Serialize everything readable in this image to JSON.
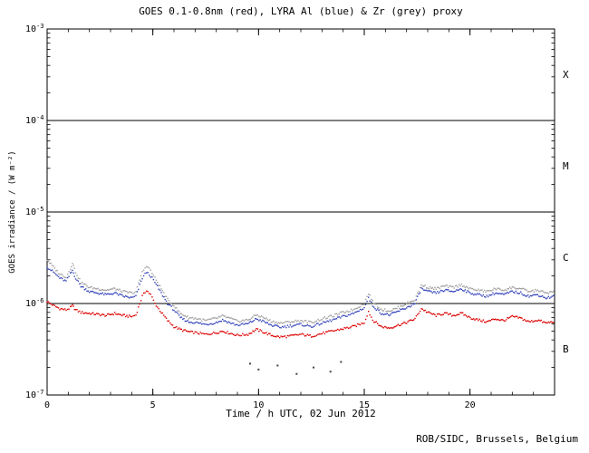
{
  "chart_data": {
    "type": "line",
    "title": "GOES 0.1-0.8nm (red), LYRA Al (blue) & Zr (grey) proxy",
    "xlabel": "Time / h UTC, 02 Jun 2012",
    "ylabel": "GOES irradiance / (W m⁻²)",
    "credit": "ROB/SIDC, Brussels, Belgium",
    "xlim": [
      0,
      24
    ],
    "ylim": [
      1e-07,
      0.001
    ],
    "xticks": [
      0,
      5,
      10,
      15,
      20
    ],
    "xtick_minor_step": 1,
    "ytick_exponents": [
      -3,
      -4,
      -5,
      -6,
      -7
    ],
    "hlines": [
      0.0001,
      1e-05,
      1e-06
    ],
    "grid": "off",
    "legend": "in title",
    "class_labels": [
      {
        "label": "X",
        "between_exponents": [
          -4,
          -3
        ]
      },
      {
        "label": "M",
        "between_exponents": [
          -5,
          -4
        ]
      },
      {
        "label": "C",
        "between_exponents": [
          -6,
          -5
        ]
      },
      {
        "label": "B",
        "between_exponents": [
          -7,
          -6
        ]
      }
    ],
    "series": [
      {
        "name": "GOES 0.1-0.8nm",
        "color": "#dd0000",
        "points": [
          [
            0,
            1.05e-06
          ],
          [
            0.3,
            9.5e-07
          ],
          [
            0.6,
            8.8e-07
          ],
          [
            0.9,
            8.5e-07
          ],
          [
            1.1,
            9e-07
          ],
          [
            1.2,
            9.5e-07
          ],
          [
            1.35,
            8.5e-07
          ],
          [
            1.6,
            8e-07
          ],
          [
            2,
            7.8e-07
          ],
          [
            2.4,
            7.6e-07
          ],
          [
            2.8,
            7.4e-07
          ],
          [
            3.2,
            7.8e-07
          ],
          [
            3.6,
            7.4e-07
          ],
          [
            4,
            7.2e-07
          ],
          [
            4.2,
            7.5e-07
          ],
          [
            4.5,
            1.2e-06
          ],
          [
            4.7,
            1.4e-06
          ],
          [
            4.9,
            1.25e-06
          ],
          [
            5.1,
            1e-06
          ],
          [
            5.4,
            8e-07
          ],
          [
            5.7,
            6.5e-07
          ],
          [
            6,
            5.6e-07
          ],
          [
            6.3,
            5.2e-07
          ],
          [
            6.7,
            4.9e-07
          ],
          [
            7,
            4.8e-07
          ],
          [
            7.5,
            4.6e-07
          ],
          [
            8,
            4.8e-07
          ],
          [
            8.3,
            5e-07
          ],
          [
            8.7,
            4.7e-07
          ],
          [
            9,
            4.5e-07
          ],
          [
            9.5,
            4.6e-07
          ],
          [
            9.9,
            5.2e-07
          ],
          [
            10.2,
            4.9e-07
          ],
          [
            10.6,
            4.5e-07
          ],
          [
            11,
            4.3e-07
          ],
          [
            11.5,
            4.4e-07
          ],
          [
            12,
            4.6e-07
          ],
          [
            12.5,
            4.4e-07
          ],
          [
            13,
            4.7e-07
          ],
          [
            13.5,
            5e-07
          ],
          [
            14,
            5.3e-07
          ],
          [
            14.5,
            5.6e-07
          ],
          [
            15,
            6.2e-07
          ],
          [
            15.2,
            8.2e-07
          ],
          [
            15.4,
            6.6e-07
          ],
          [
            15.8,
            5.6e-07
          ],
          [
            16.2,
            5.4e-07
          ],
          [
            16.6,
            5.8e-07
          ],
          [
            17,
            6.2e-07
          ],
          [
            17.4,
            6.8e-07
          ],
          [
            17.7,
            8.8e-07
          ],
          [
            18,
            8e-07
          ],
          [
            18.4,
            7.4e-07
          ],
          [
            18.8,
            7.8e-07
          ],
          [
            19.2,
            7.4e-07
          ],
          [
            19.6,
            7.8e-07
          ],
          [
            20,
            7e-07
          ],
          [
            20.4,
            6.6e-07
          ],
          [
            20.8,
            6.3e-07
          ],
          [
            21.2,
            6.8e-07
          ],
          [
            21.6,
            6.5e-07
          ],
          [
            22,
            7.2e-07
          ],
          [
            22.4,
            6.9e-07
          ],
          [
            22.8,
            6.3e-07
          ],
          [
            23.2,
            6.6e-07
          ],
          [
            23.6,
            6.1e-07
          ],
          [
            24,
            6.4e-07
          ]
        ]
      },
      {
        "name": "LYRA Al proxy",
        "color": "#3344bb",
        "points": [
          [
            0,
            2.5e-06
          ],
          [
            0.3,
            2.2e-06
          ],
          [
            0.6,
            1.9e-06
          ],
          [
            0.9,
            1.75e-06
          ],
          [
            1.1,
            2.1e-06
          ],
          [
            1.2,
            2.3e-06
          ],
          [
            1.35,
            1.9e-06
          ],
          [
            1.6,
            1.55e-06
          ],
          [
            2,
            1.35e-06
          ],
          [
            2.4,
            1.3e-06
          ],
          [
            2.8,
            1.25e-06
          ],
          [
            3.2,
            1.3e-06
          ],
          [
            3.6,
            1.2e-06
          ],
          [
            4,
            1.15e-06
          ],
          [
            4.2,
            1.2e-06
          ],
          [
            4.5,
            1.9e-06
          ],
          [
            4.7,
            2.2e-06
          ],
          [
            4.9,
            2e-06
          ],
          [
            5.1,
            1.7e-06
          ],
          [
            5.4,
            1.3e-06
          ],
          [
            5.7,
            1e-06
          ],
          [
            6,
            8.5e-07
          ],
          [
            6.3,
            7e-07
          ],
          [
            6.7,
            6.3e-07
          ],
          [
            7,
            6.2e-07
          ],
          [
            7.5,
            5.9e-07
          ],
          [
            8,
            6.2e-07
          ],
          [
            8.3,
            6.6e-07
          ],
          [
            8.7,
            6.1e-07
          ],
          [
            9,
            5.8e-07
          ],
          [
            9.5,
            6e-07
          ],
          [
            9.9,
            6.8e-07
          ],
          [
            10.2,
            6.4e-07
          ],
          [
            10.6,
            5.8e-07
          ],
          [
            11,
            5.5e-07
          ],
          [
            11.5,
            5.7e-07
          ],
          [
            12,
            5.9e-07
          ],
          [
            12.5,
            5.6e-07
          ],
          [
            13,
            6.1e-07
          ],
          [
            13.5,
            6.6e-07
          ],
          [
            14,
            7.2e-07
          ],
          [
            14.5,
            7.8e-07
          ],
          [
            15,
            9e-07
          ],
          [
            15.2,
            1.15e-06
          ],
          [
            15.4,
            9.5e-07
          ],
          [
            15.8,
            7.8e-07
          ],
          [
            16.2,
            7.5e-07
          ],
          [
            16.6,
            8.2e-07
          ],
          [
            17,
            9e-07
          ],
          [
            17.4,
            1e-06
          ],
          [
            17.7,
            1.45e-06
          ],
          [
            18,
            1.35e-06
          ],
          [
            18.4,
            1.3e-06
          ],
          [
            18.8,
            1.4e-06
          ],
          [
            19.2,
            1.35e-06
          ],
          [
            19.6,
            1.45e-06
          ],
          [
            20,
            1.3e-06
          ],
          [
            20.4,
            1.25e-06
          ],
          [
            20.8,
            1.2e-06
          ],
          [
            21.2,
            1.3e-06
          ],
          [
            21.6,
            1.25e-06
          ],
          [
            22,
            1.35e-06
          ],
          [
            22.4,
            1.3e-06
          ],
          [
            22.8,
            1.2e-06
          ],
          [
            23.2,
            1.25e-06
          ],
          [
            23.6,
            1.15e-06
          ],
          [
            24,
            1.2e-06
          ]
        ]
      },
      {
        "name": "LYRA Zr proxy",
        "color": "#a0a0a0",
        "points": [
          [
            0,
            3e-06
          ],
          [
            0.3,
            2.5e-06
          ],
          [
            0.6,
            2.1e-06
          ],
          [
            0.9,
            1.95e-06
          ],
          [
            1.1,
            2.4e-06
          ],
          [
            1.2,
            2.8e-06
          ],
          [
            1.35,
            2.2e-06
          ],
          [
            1.6,
            1.7e-06
          ],
          [
            2,
            1.5e-06
          ],
          [
            2.4,
            1.45e-06
          ],
          [
            2.8,
            1.4e-06
          ],
          [
            3.2,
            1.45e-06
          ],
          [
            3.6,
            1.35e-06
          ],
          [
            4,
            1.3e-06
          ],
          [
            4.2,
            1.35e-06
          ],
          [
            4.5,
            2.2e-06
          ],
          [
            4.7,
            2.6e-06
          ],
          [
            4.9,
            2.3e-06
          ],
          [
            5.1,
            1.9e-06
          ],
          [
            5.4,
            1.45e-06
          ],
          [
            5.7,
            1.1e-06
          ],
          [
            6,
            9.5e-07
          ],
          [
            6.3,
            7.8e-07
          ],
          [
            6.7,
            7e-07
          ],
          [
            7,
            6.9e-07
          ],
          [
            7.5,
            6.5e-07
          ],
          [
            8,
            6.9e-07
          ],
          [
            8.3,
            7.3e-07
          ],
          [
            8.7,
            6.8e-07
          ],
          [
            9,
            6.4e-07
          ],
          [
            9.5,
            6.6e-07
          ],
          [
            9.9,
            7.5e-07
          ],
          [
            10.2,
            7.1e-07
          ],
          [
            10.6,
            6.4e-07
          ],
          [
            11,
            6.1e-07
          ],
          [
            11.5,
            6.3e-07
          ],
          [
            12,
            6.5e-07
          ],
          [
            12.5,
            6.2e-07
          ],
          [
            13,
            6.8e-07
          ],
          [
            13.5,
            7.3e-07
          ],
          [
            14,
            8e-07
          ],
          [
            14.5,
            8.6e-07
          ],
          [
            15,
            1e-06
          ],
          [
            15.2,
            1.3e-06
          ],
          [
            15.4,
            1.05e-06
          ],
          [
            15.8,
            8.6e-07
          ],
          [
            16.2,
            8.3e-07
          ],
          [
            16.6,
            9e-07
          ],
          [
            17,
            1e-06
          ],
          [
            17.4,
            1.1e-06
          ],
          [
            17.7,
            1.6e-06
          ],
          [
            18,
            1.5e-06
          ],
          [
            18.4,
            1.45e-06
          ],
          [
            18.8,
            1.55e-06
          ],
          [
            19.2,
            1.5e-06
          ],
          [
            19.6,
            1.6e-06
          ],
          [
            20,
            1.45e-06
          ],
          [
            20.4,
            1.4e-06
          ],
          [
            20.8,
            1.35e-06
          ],
          [
            21.2,
            1.45e-06
          ],
          [
            21.6,
            1.4e-06
          ],
          [
            22,
            1.5e-06
          ],
          [
            22.4,
            1.45e-06
          ],
          [
            22.8,
            1.35e-06
          ],
          [
            23.2,
            1.4e-06
          ],
          [
            23.6,
            1.3e-06
          ],
          [
            24,
            1.35e-06
          ]
        ]
      }
    ],
    "extra_points": {
      "name": "isolated low-flux points",
      "color": "#444444",
      "points": [
        [
          9.6,
          2.2e-07
        ],
        [
          10.0,
          1.9e-07
        ],
        [
          10.9,
          2.1e-07
        ],
        [
          11.8,
          1.7e-07
        ],
        [
          12.6,
          2e-07
        ],
        [
          13.4,
          1.8e-07
        ],
        [
          13.9,
          2.3e-07
        ]
      ]
    }
  }
}
